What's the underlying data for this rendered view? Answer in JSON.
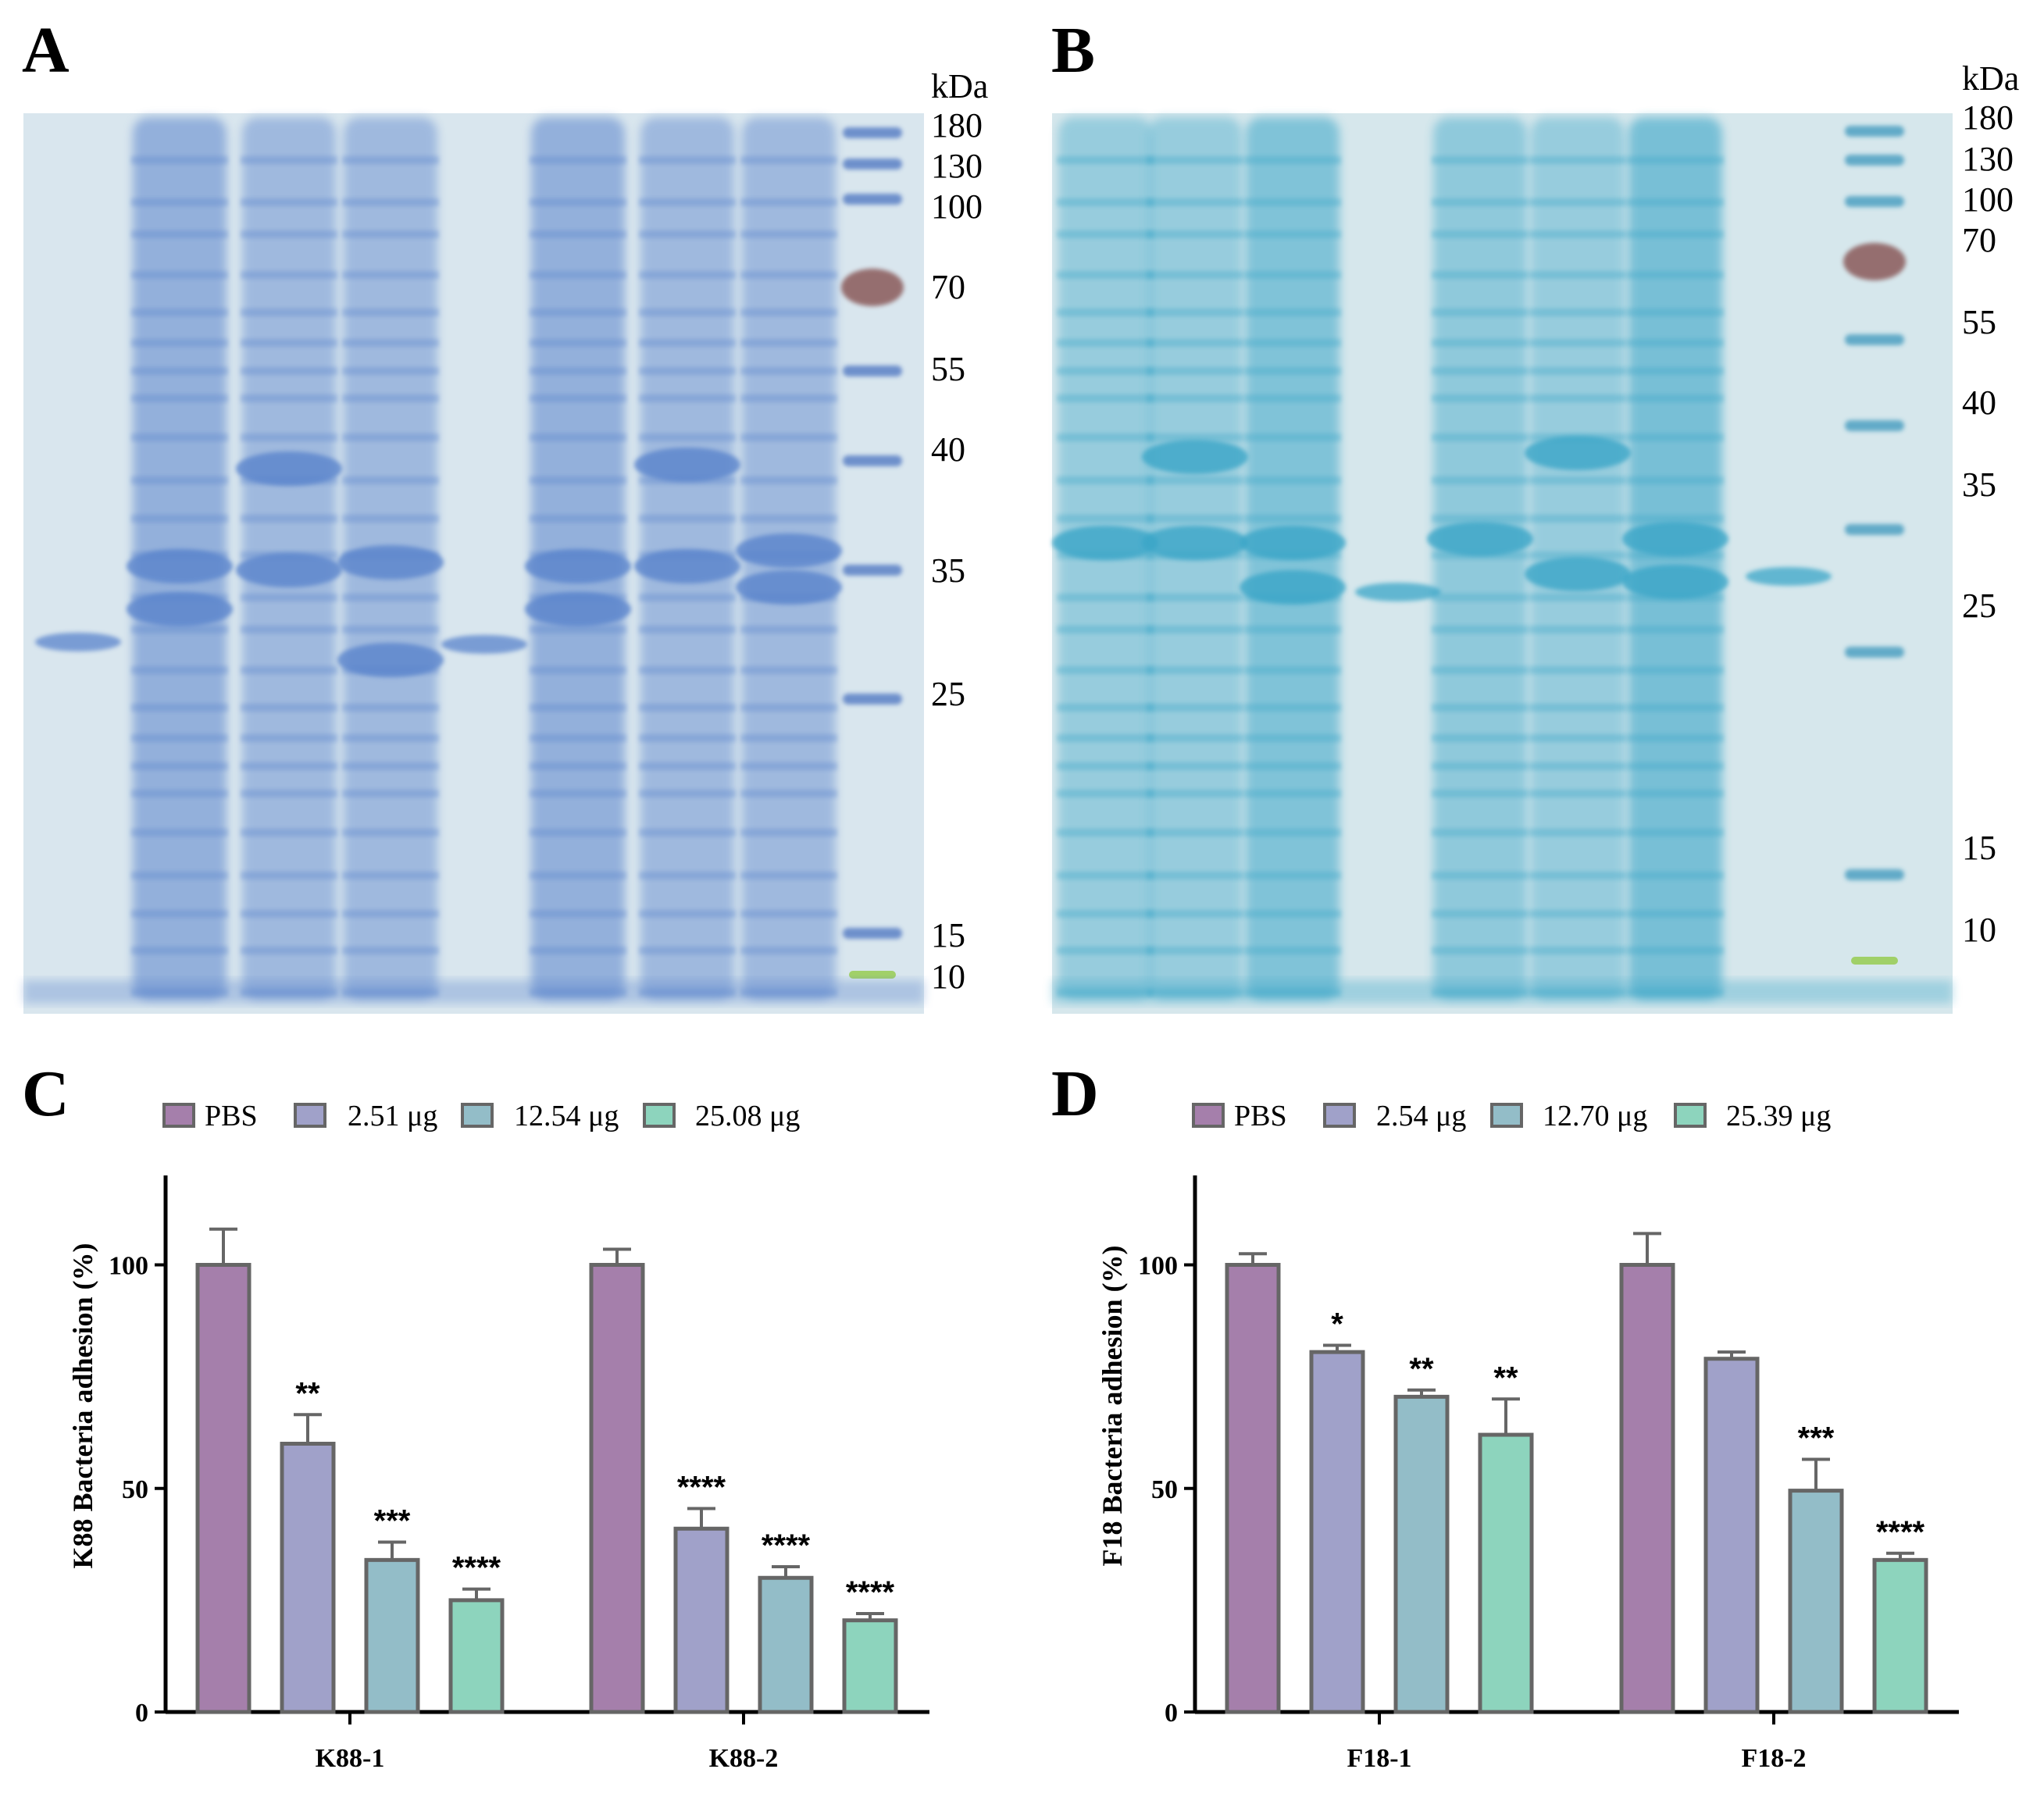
{
  "panels": {
    "A": {
      "letter": "A",
      "unit_label": "kDa",
      "markers": [
        "180",
        "130",
        "100",
        "70",
        "55",
        "40",
        "35",
        "25",
        "15",
        "10"
      ]
    },
    "B": {
      "letter": "B",
      "unit_label": "kDa",
      "markers": [
        "180",
        "130",
        "100",
        "70",
        "55",
        "40",
        "35",
        "25",
        "15",
        "10"
      ]
    },
    "C": {
      "letter": "C"
    },
    "D": {
      "letter": "D"
    }
  },
  "colors": {
    "PBS": "#a57fab",
    "low": "#a0a1c9",
    "mid": "#93bdc8",
    "high": "#8dd4bd",
    "bar_edge": "#666666",
    "gel_bg_A": "#d9e6ee",
    "gel_bg_B": "#d6e7ec"
  },
  "chart_data": [
    {
      "type": "bar",
      "id": "C",
      "categories": [
        "K88-1",
        "K88-2"
      ],
      "series": [
        {
          "name": "PBS",
          "values": [
            100,
            100
          ],
          "errors": [
            8,
            3.5
          ]
        },
        {
          "name": "2.51 μg",
          "values": [
            60,
            41
          ],
          "errors": [
            6.5,
            4.5
          ]
        },
        {
          "name": "12.54 μg",
          "values": [
            34,
            30
          ],
          "errors": [
            4,
            2.5
          ]
        },
        {
          "name": "25.08 μg",
          "values": [
            25,
            20.5
          ],
          "errors": [
            2.5,
            1.5
          ]
        }
      ],
      "significance": [
        [
          "",
          ""
        ],
        [
          "**",
          "****"
        ],
        [
          "***",
          "****"
        ],
        [
          "****",
          "****"
        ]
      ],
      "ylabel": "K88 Bacteria adhesion (%)",
      "xlabel": "",
      "yticks": [
        "0",
        "50",
        "100"
      ],
      "ylim": [
        0,
        120
      ]
    },
    {
      "type": "bar",
      "id": "D",
      "categories": [
        "F18-1",
        "F18-2"
      ],
      "series": [
        {
          "name": "PBS",
          "values": [
            100,
            100
          ],
          "errors": [
            2.5,
            7
          ]
        },
        {
          "name": "2.54 μg",
          "values": [
            80.5,
            79
          ],
          "errors": [
            1.5,
            1.5
          ]
        },
        {
          "name": "12.70 μg",
          "values": [
            70.5,
            49.5
          ],
          "errors": [
            1.5,
            7
          ]
        },
        {
          "name": "25.39 μg",
          "values": [
            62,
            34
          ],
          "errors": [
            8,
            1.5
          ]
        }
      ],
      "significance": [
        [
          "",
          ""
        ],
        [
          "*",
          ""
        ],
        [
          "**",
          "***"
        ],
        [
          "**",
          "****"
        ]
      ],
      "ylabel": "F18 Bacteria adhesion (%)",
      "xlabel": "",
      "yticks": [
        "0",
        "50",
        "100"
      ],
      "ylim": [
        0,
        120
      ]
    }
  ]
}
